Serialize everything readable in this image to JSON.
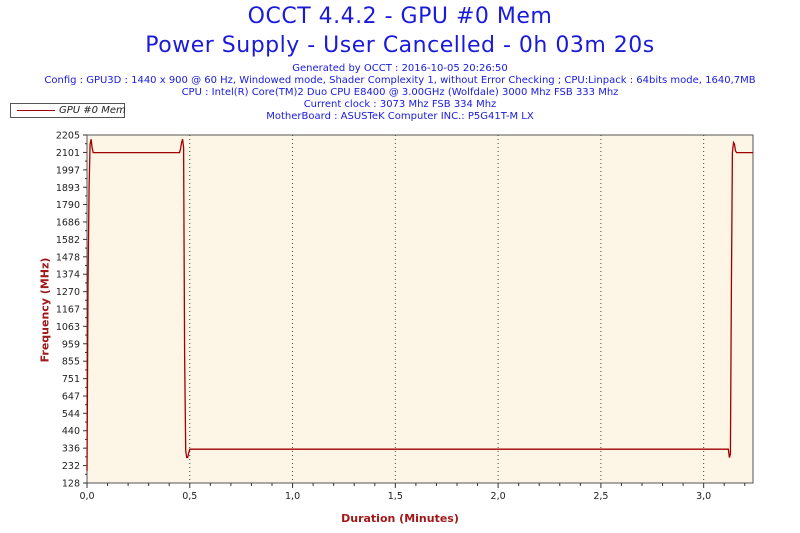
{
  "header": {
    "title": "OCCT 4.4.2 - GPU #0 Mem",
    "subtitle": "Power Supply - User Cancelled - 0h 03m 20s",
    "info_lines": [
      "Generated by OCCT : 2016-10-05 20:26:50",
      "Config : GPU3D : 1440 x 900 @ 60 Hz, Windowed mode, Shader Complexity 1, without Error Checking ; CPU:Linpack : 64bits mode, 1640,7MB",
      "CPU : Intel(R) Core(TM)2 Duo CPU E8400 @ 3.00GHz (Wolfdale) 3000 Mhz FSB 333 Mhz",
      "Current clock : 3073 Mhz FSB 334 Mhz",
      "MotherBoard : ASUSTeK Computer INC.: P5G41T-M LX"
    ]
  },
  "colors": {
    "title": "#1a1adb",
    "series": "#a00000",
    "plot_bg": "#fdf5e6",
    "axis_label": "#a01818"
  },
  "chart_data": {
    "type": "line",
    "title": "OCCT 4.4.2 - GPU #0 Mem",
    "xlabel": "Duration (Minutes)",
    "ylabel": "Frequency (MHz)",
    "xlim": [
      0,
      3.24
    ],
    "ylim": [
      128,
      2205
    ],
    "x_ticks": [
      0.0,
      0.5,
      1.0,
      1.5,
      2.0,
      2.5,
      3.0
    ],
    "x_tick_labels": [
      "0,0",
      "0,5",
      "1,0",
      "1,5",
      "2,0",
      "2,5",
      "3,0"
    ],
    "y_ticks": [
      128,
      232,
      336,
      440,
      544,
      647,
      751,
      855,
      959,
      1063,
      1167,
      1270,
      1374,
      1478,
      1582,
      1686,
      1790,
      1893,
      1997,
      2101,
      2205
    ],
    "grid": "vertical dotted",
    "legend": "top-left",
    "series": [
      {
        "name": "GPU #0 Mem",
        "x": [
          0.0,
          0.005,
          0.01,
          0.015,
          0.02,
          0.025,
          0.03,
          0.04,
          0.45,
          0.455,
          0.46,
          0.465,
          0.47,
          0.475,
          0.48,
          0.485,
          0.49,
          0.495,
          0.5,
          3.12,
          3.125,
          3.13,
          3.135,
          3.14,
          3.145,
          3.15,
          3.155,
          3.16,
          3.17,
          3.24
        ],
        "y": [
          200,
          1300,
          1900,
          2150,
          2180,
          2130,
          2100,
          2100,
          2100,
          2120,
          2160,
          2180,
          2130,
          900,
          320,
          280,
          280,
          310,
          330,
          330,
          280,
          300,
          1300,
          2100,
          2160,
          2150,
          2110,
          2100,
          2100,
          2100
        ]
      }
    ]
  }
}
